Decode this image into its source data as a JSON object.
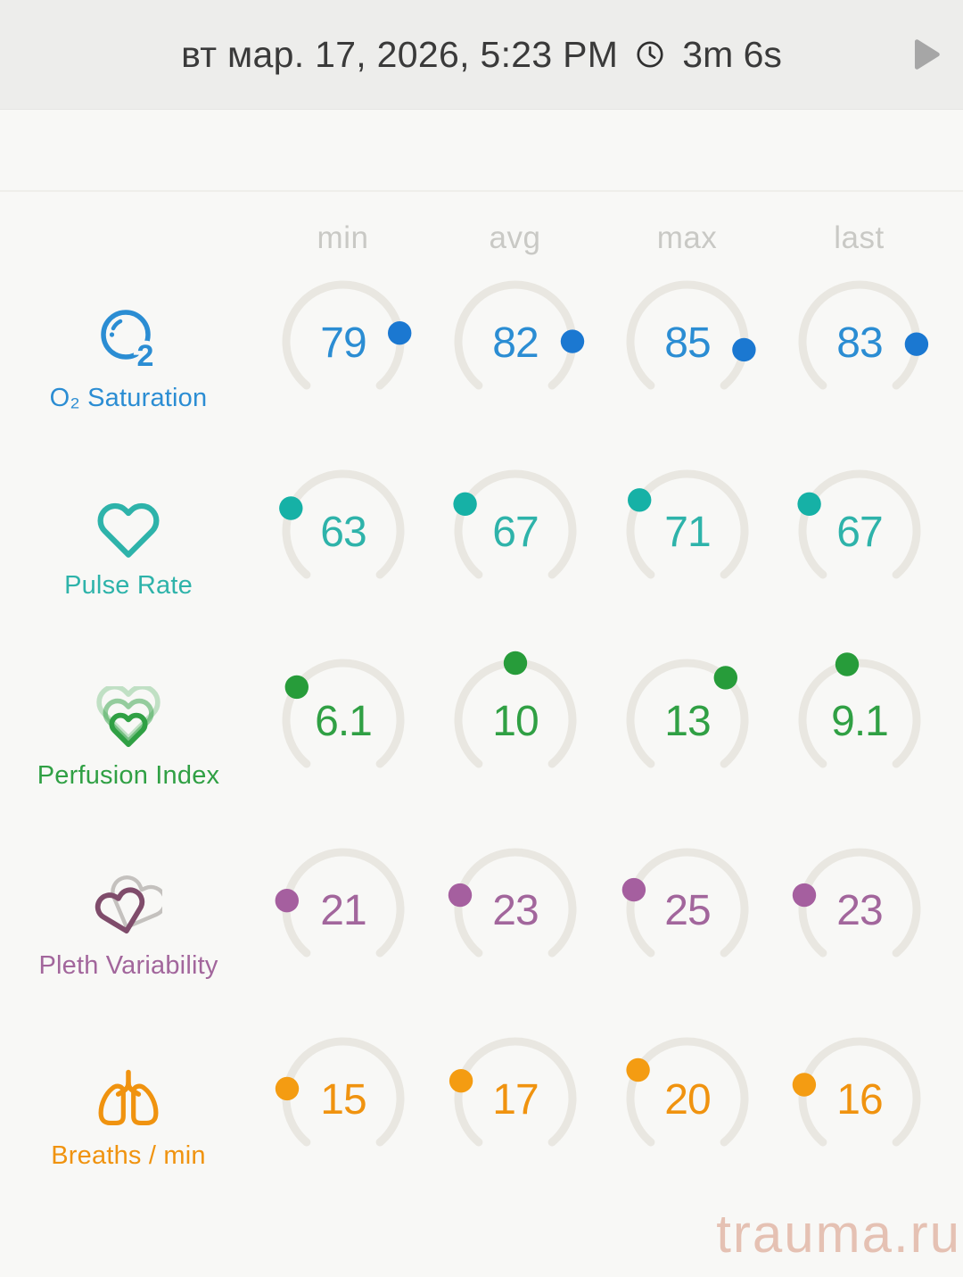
{
  "header": {
    "date": "вт мар. 17, 2026, 5:23 PM",
    "duration": "3m 6s"
  },
  "chart_data": {
    "type": "gauge-table",
    "columns": [
      "min",
      "avg",
      "max",
      "last"
    ],
    "gauge_geometry": {
      "start_angle_deg": 220,
      "sweep_deg": 280,
      "track_color": "#e9e7e1"
    },
    "rows": [
      {
        "label": "O₂ Saturation",
        "icon": "o2-saturation-icon",
        "color": "#2b8dd3",
        "dot_color": "#1b78d1",
        "range": [
          0,
          100
        ],
        "values": [
          79,
          82,
          85,
          83
        ]
      },
      {
        "label": "Pulse Rate",
        "icon": "heart-icon",
        "color": "#2eb3aa",
        "dot_color": "#16b1a6",
        "range": [
          0,
          240
        ],
        "values": [
          63,
          67,
          71,
          67
        ]
      },
      {
        "label": "Perfusion Index",
        "icon": "nested-hearts-icon",
        "color": "#30a044",
        "dot_color": "#279c3a",
        "range": [
          0,
          20
        ],
        "values": [
          6.1,
          10,
          13,
          9.1
        ]
      },
      {
        "label": "Pleth Variability",
        "icon": "overlapping-hearts-icon",
        "color": "#a2669c",
        "dot_color": "#a55f9f",
        "range": [
          0,
          100
        ],
        "values": [
          21,
          23,
          25,
          23
        ]
      },
      {
        "label": "Breaths / min",
        "icon": "lungs-icon",
        "color": "#f0930f",
        "dot_color": "#f49c12",
        "range": [
          0,
          70
        ],
        "values": [
          15,
          17,
          20,
          16
        ]
      }
    ]
  },
  "watermark": "trauma.ru"
}
